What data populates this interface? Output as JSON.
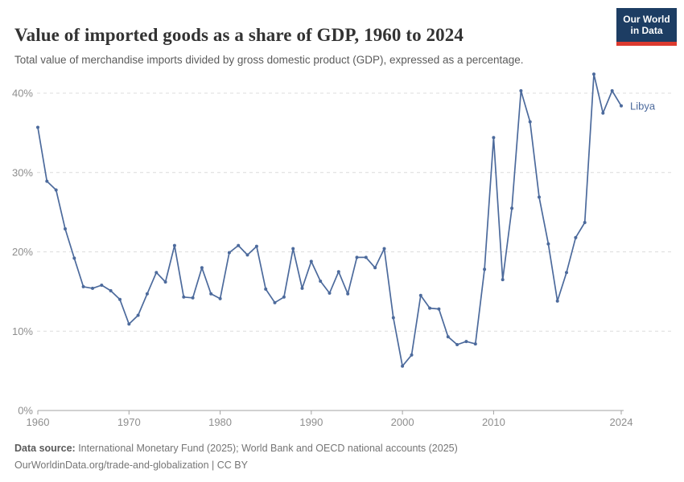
{
  "header": {
    "title": "Value of imported goods as a share of GDP, 1960 to 2024",
    "subtitle": "Total value of merchandise imports divided by gross domestic product (GDP), expressed as a percentage.",
    "logo": {
      "line1": "Our World",
      "line2": "in Data"
    }
  },
  "chart_data": {
    "type": "line",
    "title": "Value of imported goods as a share of GDP, 1960 to 2024",
    "xlabel": "",
    "ylabel": "",
    "ylim": [
      0,
      40
    ],
    "grid": "horizontal-dashed",
    "legend_position": "end-of-line-label",
    "x_ticks": [
      1960,
      1970,
      1980,
      1990,
      2000,
      2010,
      2024
    ],
    "y_ticks": [
      0,
      10,
      20,
      30,
      40
    ],
    "y_tick_suffix": "%",
    "series": [
      {
        "name": "Libya",
        "color": "#4C6A9C",
        "x": [
          1960,
          1961,
          1962,
          1963,
          1964,
          1965,
          1966,
          1967,
          1968,
          1969,
          1970,
          1971,
          1972,
          1973,
          1974,
          1975,
          1976,
          1977,
          1978,
          1979,
          1980,
          1981,
          1982,
          1983,
          1984,
          1985,
          1986,
          1987,
          1988,
          1989,
          1990,
          1991,
          1992,
          1993,
          1994,
          1995,
          1996,
          1997,
          1998,
          1999,
          2000,
          2001,
          2002,
          2003,
          2004,
          2005,
          2006,
          2007,
          2008,
          2009,
          2010,
          2011,
          2012,
          2013,
          2014,
          2015,
          2016,
          2017,
          2018,
          2019,
          2020,
          2021,
          2022,
          2023,
          2024
        ],
        "values": [
          35.7,
          28.9,
          27.8,
          22.9,
          19.2,
          15.6,
          15.4,
          15.8,
          15.1,
          14.0,
          10.9,
          12.0,
          14.7,
          17.4,
          16.2,
          20.8,
          14.3,
          14.2,
          18.0,
          14.7,
          14.1,
          19.9,
          20.8,
          19.6,
          20.7,
          15.3,
          13.6,
          14.3,
          20.4,
          15.4,
          18.8,
          16.3,
          14.8,
          17.5,
          14.7,
          19.3,
          19.3,
          18.0,
          20.4,
          11.7,
          5.6,
          7.0,
          14.5,
          12.9,
          12.8,
          9.3,
          8.3,
          8.7,
          8.4,
          17.8,
          34.4,
          16.5,
          25.5,
          40.3,
          36.4,
          26.9,
          21.0,
          13.8,
          17.4,
          21.8,
          23.7,
          42.4,
          37.5,
          40.3,
          38.4
        ]
      }
    ]
  },
  "footer": {
    "source_label": "Data source:",
    "source_text": " International Monetary Fund (2025); World Bank and OECD national accounts (2025)",
    "link_text": "OurWorldinData.org/trade-and-globalization | CC BY"
  },
  "colors": {
    "line": "#4C6A9C",
    "gridline": "#dcdcdc",
    "axis": "#a3a3a3",
    "tick_label": "#8e8e8e",
    "logo_bg": "#1d3d63",
    "logo_red": "#dc3a2f"
  }
}
